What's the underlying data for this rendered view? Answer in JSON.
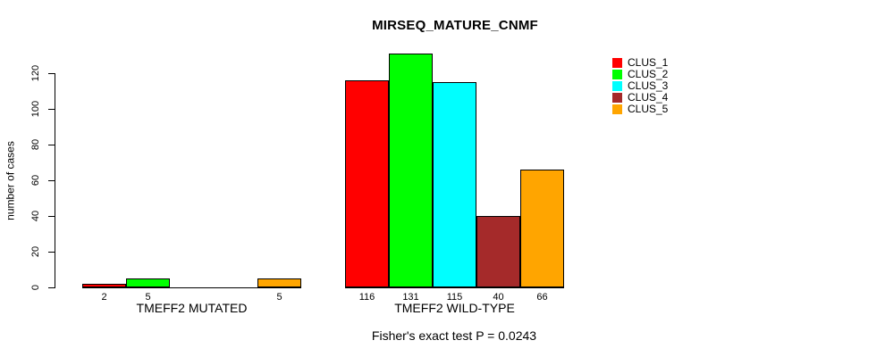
{
  "chart_data": {
    "type": "bar",
    "title": "MIRSEQ_MATURE_CNMF",
    "ylabel": "number of cases",
    "xlabel": "",
    "subtitle": "Fisher's exact test P = 0.0243",
    "ylim": [
      0,
      120
    ],
    "yticks": [
      0,
      20,
      40,
      60,
      80,
      100,
      120
    ],
    "grid": "off",
    "legend_position": "right-inside",
    "series": [
      {
        "name": "CLUS_1",
        "color": "#FF0000"
      },
      {
        "name": "CLUS_2",
        "color": "#00FF00"
      },
      {
        "name": "CLUS_3",
        "color": "#00FFFF"
      },
      {
        "name": "CLUS_4",
        "color": "#A52A2A"
      },
      {
        "name": "CLUS_5",
        "color": "#FFA500"
      }
    ],
    "groups": [
      {
        "label": "TMEFF2 MUTATED",
        "values": [
          2,
          5,
          0,
          0,
          5
        ],
        "value_labels": [
          "2",
          "5",
          "",
          "",
          "5"
        ]
      },
      {
        "label": "TMEFF2 WILD-TYPE",
        "values": [
          116,
          131,
          115,
          40,
          66
        ],
        "value_labels": [
          "116",
          "131",
          "115",
          "40",
          "66"
        ]
      }
    ]
  }
}
